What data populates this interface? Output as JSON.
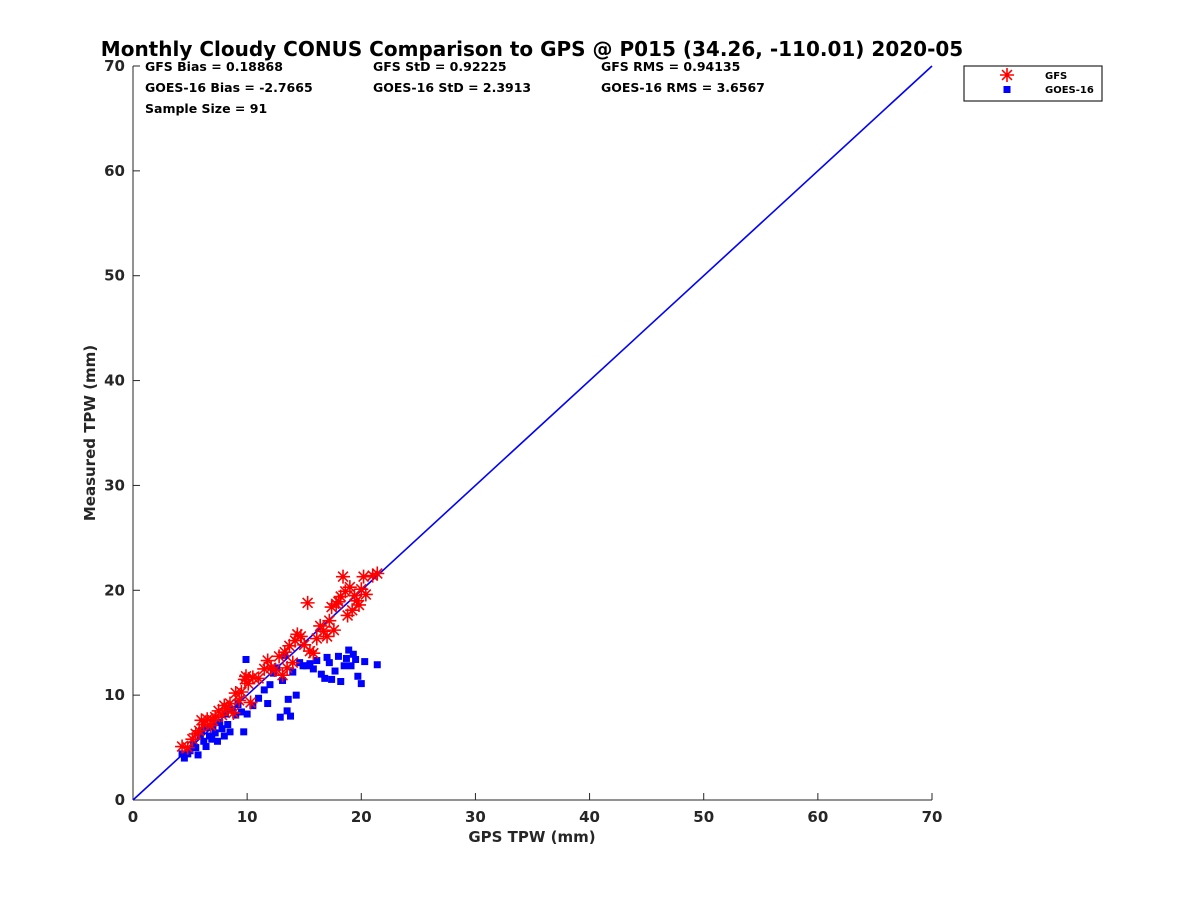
{
  "chart_data": {
    "type": "scatter",
    "title": "Monthly Cloudy CONUS Comparison to GPS @ P015 (34.26, -110.01) 2020-05",
    "xlabel": "GPS TPW (mm)",
    "ylabel": "Measured TPW (mm)",
    "xlim": [
      0,
      70
    ],
    "ylim": [
      0,
      70
    ],
    "xticks": [
      0,
      10,
      20,
      30,
      40,
      50,
      60,
      70
    ],
    "yticks": [
      0,
      10,
      20,
      30,
      40,
      50,
      60,
      70
    ],
    "grid": false,
    "legend_position": "top-right, outside plot area",
    "stats": {
      "gfs_bias": "GFS Bias = 0.18868",
      "goes_bias": "GOES-16 Bias = -2.7665",
      "sample_size": "Sample Size = 91",
      "gfs_std": "GFS StD = 0.92225",
      "goes_std": "GOES-16 StD = 2.3913",
      "gfs_rms": "GFS RMS = 0.94135",
      "goes_rms": "GOES-16 RMS = 3.6567"
    },
    "reference_line": {
      "x": [
        0,
        70
      ],
      "y": [
        0,
        70
      ],
      "color": "#0000ff"
    },
    "series": [
      {
        "name": "GFS",
        "marker": "asterisk",
        "color": "#ff0000",
        "points": [
          [
            4.3,
            5.1
          ],
          [
            4.8,
            5.0
          ],
          [
            5.2,
            5.8
          ],
          [
            5.5,
            6.3
          ],
          [
            5.8,
            6.6
          ],
          [
            6.0,
            7.6
          ],
          [
            6.2,
            7.2
          ],
          [
            6.5,
            7.7
          ],
          [
            6.8,
            7.1
          ],
          [
            7.0,
            7.6
          ],
          [
            7.2,
            7.9
          ],
          [
            7.5,
            8.5
          ],
          [
            7.8,
            8.1
          ],
          [
            8.0,
            9.0
          ],
          [
            8.2,
            8.7
          ],
          [
            8.5,
            9.2
          ],
          [
            8.8,
            8.3
          ],
          [
            9.0,
            10.2
          ],
          [
            9.3,
            9.5
          ],
          [
            9.5,
            10.3
          ],
          [
            9.8,
            11.5
          ],
          [
            9.9,
            11.8
          ],
          [
            10.1,
            11.1
          ],
          [
            10.3,
            9.3
          ],
          [
            10.5,
            11.7
          ],
          [
            11.0,
            11.6
          ],
          [
            11.5,
            12.5
          ],
          [
            11.8,
            13.3
          ],
          [
            12.1,
            12.6
          ],
          [
            12.4,
            12.4
          ],
          [
            12.8,
            13.7
          ],
          [
            13.1,
            11.9
          ],
          [
            13.3,
            14.1
          ],
          [
            13.5,
            12.6
          ],
          [
            13.7,
            14.7
          ],
          [
            14.0,
            13.1
          ],
          [
            14.2,
            15.2
          ],
          [
            14.4,
            15.8
          ],
          [
            14.7,
            15.6
          ],
          [
            15.0,
            14.8
          ],
          [
            15.3,
            18.8
          ],
          [
            15.5,
            14.2
          ],
          [
            15.8,
            14.0
          ],
          [
            16.1,
            15.4
          ],
          [
            16.4,
            16.6
          ],
          [
            16.7,
            16.1
          ],
          [
            17.0,
            15.6
          ],
          [
            17.2,
            17.1
          ],
          [
            17.4,
            18.4
          ],
          [
            17.6,
            16.2
          ],
          [
            17.8,
            18.7
          ],
          [
            18.0,
            18.9
          ],
          [
            18.2,
            19.4
          ],
          [
            18.4,
            21.3
          ],
          [
            18.6,
            19.9
          ],
          [
            18.8,
            17.6
          ],
          [
            19.0,
            20.3
          ],
          [
            19.2,
            18.1
          ],
          [
            19.4,
            19.5
          ],
          [
            19.6,
            19.0
          ],
          [
            19.8,
            18.6
          ],
          [
            20.0,
            20.1
          ],
          [
            20.2,
            21.3
          ],
          [
            20.4,
            19.6
          ],
          [
            21.0,
            21.4
          ],
          [
            21.4,
            21.6
          ]
        ]
      },
      {
        "name": "GOES-16",
        "marker": "square",
        "color": "#0000ff",
        "points": [
          [
            4.3,
            4.4
          ],
          [
            4.5,
            4.0
          ],
          [
            4.8,
            4.4
          ],
          [
            5.0,
            4.7
          ],
          [
            5.3,
            5.3
          ],
          [
            5.5,
            5.0
          ],
          [
            5.7,
            4.3
          ],
          [
            5.9,
            6.2
          ],
          [
            6.0,
            6.6
          ],
          [
            6.2,
            5.6
          ],
          [
            6.4,
            5.1
          ],
          [
            6.5,
            6.9
          ],
          [
            6.7,
            6.1
          ],
          [
            6.9,
            5.8
          ],
          [
            7.0,
            7.0
          ],
          [
            7.2,
            6.4
          ],
          [
            7.4,
            5.6
          ],
          [
            7.6,
            7.4
          ],
          [
            7.8,
            6.8
          ],
          [
            8.0,
            6.1
          ],
          [
            8.1,
            8.2
          ],
          [
            8.3,
            7.2
          ],
          [
            8.5,
            6.5
          ],
          [
            8.7,
            8.6
          ],
          [
            9.0,
            8.1
          ],
          [
            9.2,
            9.1
          ],
          [
            9.5,
            8.4
          ],
          [
            9.7,
            6.5
          ],
          [
            9.9,
            13.4
          ],
          [
            10.0,
            8.2
          ],
          [
            10.5,
            9.0
          ],
          [
            11.0,
            9.7
          ],
          [
            11.5,
            10.5
          ],
          [
            11.8,
            9.2
          ],
          [
            12.0,
            11.0
          ],
          [
            12.3,
            12.1
          ],
          [
            12.6,
            12.6
          ],
          [
            12.9,
            7.9
          ],
          [
            13.1,
            11.4
          ],
          [
            13.3,
            13.8
          ],
          [
            13.5,
            8.5
          ],
          [
            13.6,
            9.6
          ],
          [
            13.8,
            8.0
          ],
          [
            14.0,
            12.2
          ],
          [
            14.3,
            10.0
          ],
          [
            14.6,
            13.1
          ],
          [
            14.9,
            12.8
          ],
          [
            15.2,
            12.8
          ],
          [
            15.5,
            13.0
          ],
          [
            15.8,
            12.5
          ],
          [
            16.1,
            13.3
          ],
          [
            16.5,
            12.0
          ],
          [
            16.8,
            11.6
          ],
          [
            17.0,
            13.6
          ],
          [
            17.2,
            13.1
          ],
          [
            17.4,
            11.5
          ],
          [
            17.7,
            12.3
          ],
          [
            18.0,
            13.7
          ],
          [
            18.2,
            11.3
          ],
          [
            18.5,
            12.8
          ],
          [
            18.7,
            13.5
          ],
          [
            18.9,
            14.3
          ],
          [
            19.1,
            12.8
          ],
          [
            19.3,
            13.9
          ],
          [
            19.5,
            13.4
          ],
          [
            19.7,
            11.8
          ],
          [
            20.0,
            11.1
          ],
          [
            20.3,
            13.2
          ],
          [
            21.4,
            12.9
          ]
        ]
      }
    ]
  }
}
